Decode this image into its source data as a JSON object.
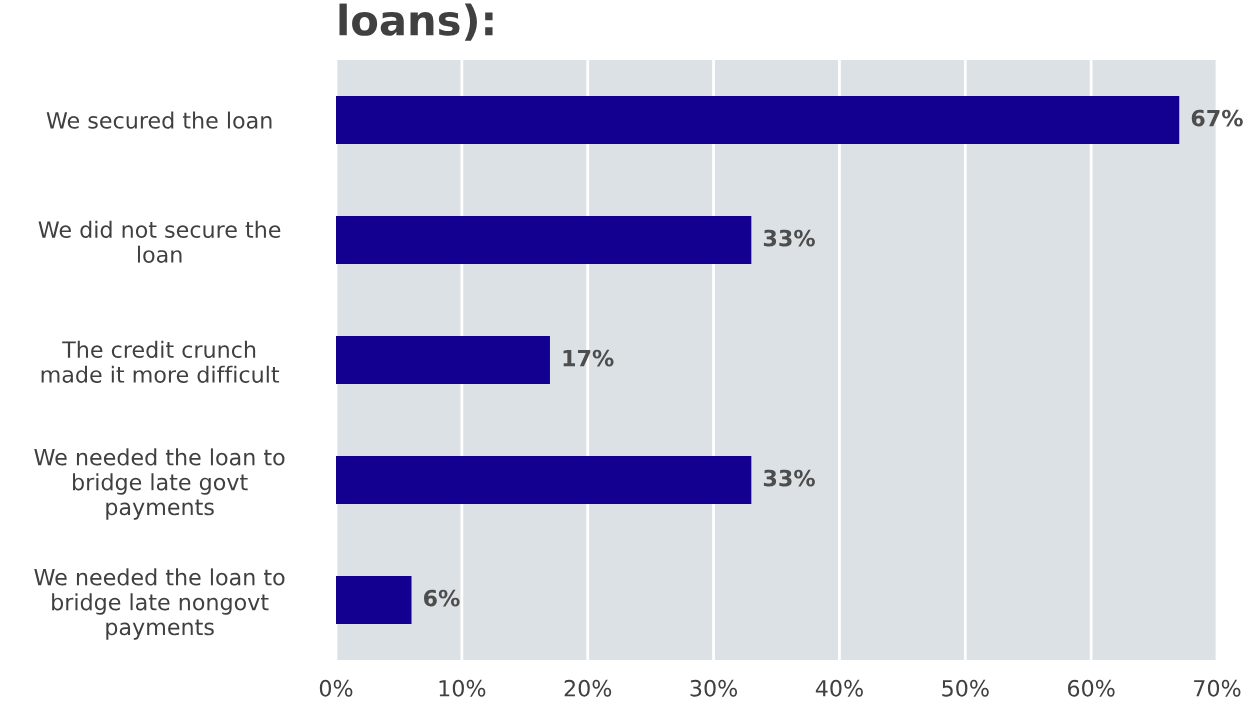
{
  "chart_data": {
    "type": "bar",
    "orientation": "horizontal",
    "title": "loans):",
    "categories": [
      "We secured the loan",
      "We did not secure the\nloan",
      "The credit crunch\nmade it more difficult",
      "We needed the loan to\nbridge late govt\npayments",
      "We needed the loan to\nbridge late nongovt\npayments"
    ],
    "values": [
      67,
      33,
      17,
      33,
      6
    ],
    "value_labels": [
      "67%",
      "33%",
      "17%",
      "33%",
      "6%"
    ],
    "color": "#140090",
    "xlim": [
      0,
      70
    ],
    "xticks": [
      {
        "value": 0,
        "label": "0%"
      },
      {
        "value": 10,
        "label": "10%"
      },
      {
        "value": 20,
        "label": "20%"
      },
      {
        "value": 30,
        "label": "30%"
      },
      {
        "value": 40,
        "label": "40%"
      },
      {
        "value": 50,
        "label": "50%"
      },
      {
        "value": 60,
        "label": "60%"
      },
      {
        "value": 70,
        "label": "70%"
      }
    ],
    "grid": "x"
  }
}
